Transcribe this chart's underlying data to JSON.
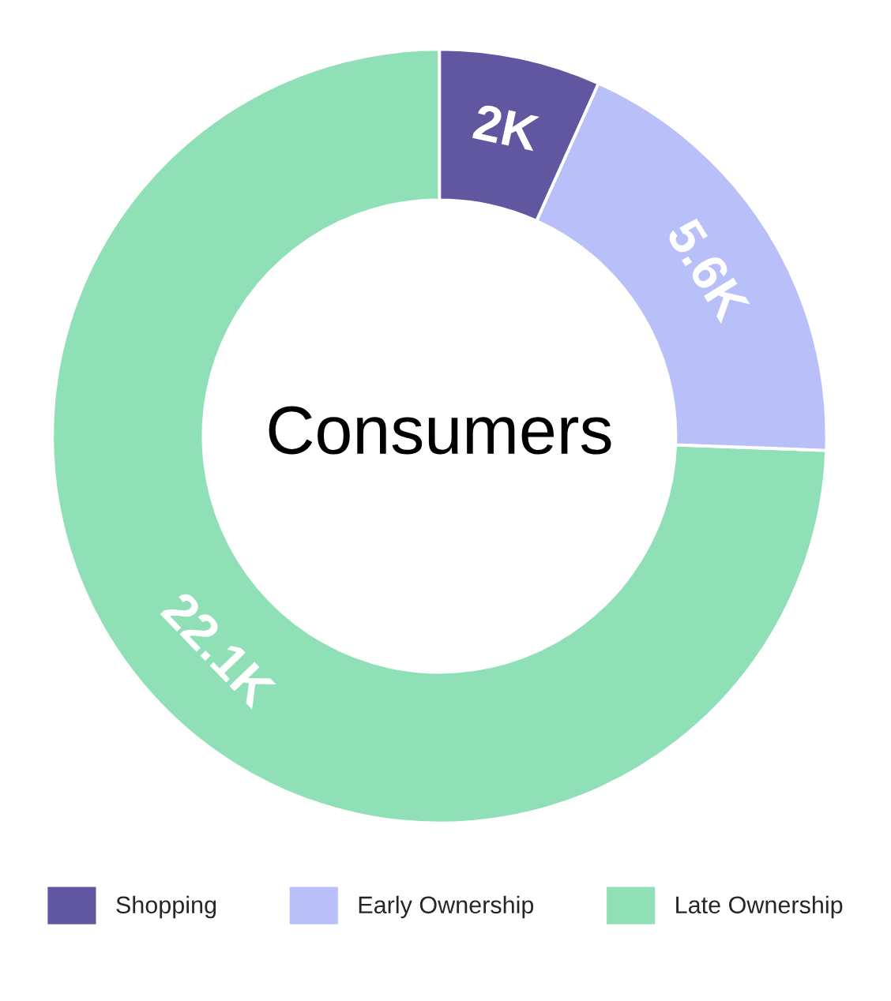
{
  "chart_data": {
    "type": "donut",
    "title": "Consumers",
    "categories": [
      "Shopping",
      "Early Ownership",
      "Late Ownership"
    ],
    "values": [
      2000,
      5600,
      22100
    ],
    "value_labels": [
      "2K",
      "5.6K",
      "22.1K"
    ],
    "colors": [
      "#6157a0",
      "#b9bff8",
      "#8fdfb7"
    ],
    "legend": "bottom"
  }
}
